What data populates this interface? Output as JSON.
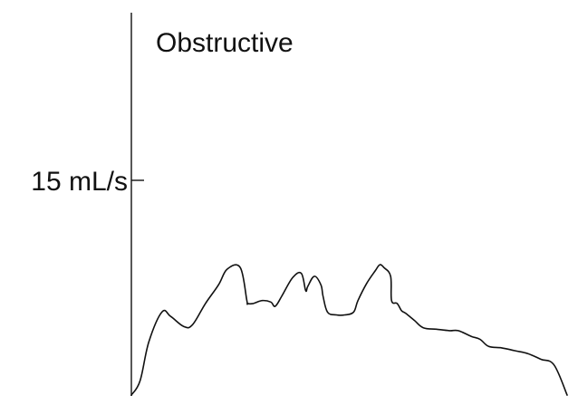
{
  "chart_data": {
    "type": "line",
    "title": "Obstructive",
    "xlabel": "",
    "ylabel": "",
    "y_unit": "mL/s",
    "ylim": [
      0,
      25
    ],
    "grid": false,
    "legend": "none",
    "y_ticks": [
      {
        "value": 15,
        "label": "15 mL/s"
      }
    ],
    "series": [
      {
        "color": "#111111",
        "x": [
          0,
          0.02,
          0.04,
          0.07,
          0.09,
          0.12,
          0.14,
          0.17,
          0.2,
          0.22,
          0.25,
          0.265,
          0.267,
          0.28,
          0.3,
          0.32,
          0.33,
          0.345,
          0.37,
          0.39,
          0.4,
          0.405,
          0.42,
          0.435,
          0.44,
          0.45,
          0.47,
          0.49,
          0.51,
          0.52,
          0.54,
          0.56,
          0.57,
          0.58,
          0.595,
          0.597,
          0.61,
          0.62,
          0.63,
          0.65,
          0.67,
          0.7,
          0.73,
          0.75,
          0.78,
          0.8,
          0.82,
          0.85,
          0.88,
          0.91,
          0.94,
          0.97,
          1.0
        ],
        "y": [
          0,
          1,
          3.7,
          5.8,
          5.5,
          4.8,
          4.9,
          6.4,
          7.7,
          8.8,
          8.9,
          6.6,
          6.4,
          6.4,
          6.6,
          6.5,
          6.2,
          6.9,
          8.2,
          8.5,
          7.3,
          7.6,
          8.3,
          7.7,
          6.9,
          5.8,
          5.6,
          5.6,
          5.8,
          6.6,
          7.8,
          8.7,
          9.1,
          8.9,
          8.3,
          6.6,
          6.4,
          5.9,
          5.7,
          5.2,
          4.7,
          4.6,
          4.5,
          4.5,
          4.1,
          3.9,
          3.4,
          3.3,
          3.1,
          2.9,
          2.5,
          2.1,
          0
        ]
      }
    ]
  }
}
